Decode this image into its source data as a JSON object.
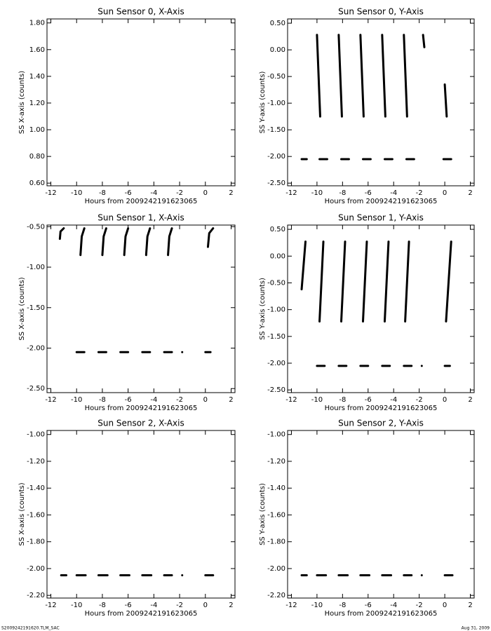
{
  "chart_data": [
    {
      "type": "line",
      "title": "Sun Sensor 0, X-Axis",
      "xlabel": "Hours from 2009242191623065",
      "ylabel": "SS X-axis (counts)",
      "xlim": [
        -12.3,
        2.3
      ],
      "xticks": [
        -12,
        -10,
        -8,
        -6,
        -4,
        -2,
        0,
        2
      ],
      "ylim": [
        0.58,
        1.83
      ],
      "yticks": [
        {
          "value": 0.6,
          "label": "0.60"
        },
        {
          "value": 0.8,
          "label": "0.80"
        },
        {
          "value": 1.0,
          "label": "1.00"
        },
        {
          "value": 1.2,
          "label": "1.20"
        },
        {
          "value": 1.4,
          "label": "1.40"
        },
        {
          "value": 1.6,
          "label": "1.60"
        },
        {
          "value": 1.8,
          "label": "1.80"
        }
      ],
      "series": []
    },
    {
      "type": "line",
      "title": "Sun Sensor 0, Y-Axis",
      "xlabel": "Hours from 2009242191623065",
      "ylabel": "SS Y-axis (counts)",
      "xlim": [
        -12.3,
        2.3
      ],
      "xticks": [
        -12,
        -10,
        -8,
        -6,
        -4,
        -2,
        0,
        2
      ],
      "ylim": [
        -2.55,
        0.58
      ],
      "yticks": [
        {
          "value": -2.5,
          "label": "-2.50"
        },
        {
          "value": -2.0,
          "label": "-2.00"
        },
        {
          "value": -1.5,
          "label": "-1.50"
        },
        {
          "value": -1.0,
          "label": "-1.00"
        },
        {
          "value": -0.5,
          "label": "-0.50"
        },
        {
          "value": 0,
          "label": "0.00"
        },
        {
          "value": 0.5,
          "label": "0.50"
        }
      ],
      "series": [
        {
          "color": "#000000",
          "x": [
            -10.0,
            -9.75,
            null,
            -8.3,
            -8.05,
            null,
            -6.6,
            -6.35,
            null,
            -4.9,
            -4.65,
            null,
            -3.2,
            -2.95,
            null,
            -1.7,
            -1.6,
            null,
            0.0,
            0.15,
            null,
            -11.2,
            -10.8,
            null,
            -9.8,
            -9.2,
            null,
            -8.1,
            -7.5,
            null,
            -6.4,
            -5.8,
            null,
            -4.7,
            -4.1,
            null,
            -3.0,
            -2.4,
            null,
            -0.1,
            0.5
          ],
          "values": [
            0.28,
            -1.25,
            null,
            0.28,
            -1.25,
            null,
            0.28,
            -1.25,
            null,
            0.28,
            -1.25,
            null,
            0.28,
            -1.25,
            null,
            0.28,
            0.05,
            null,
            -0.65,
            -1.25,
            null,
            -2.05,
            -2.05,
            null,
            -2.05,
            -2.05,
            null,
            -2.05,
            -2.05,
            null,
            -2.05,
            -2.05,
            null,
            -2.05,
            -2.05,
            null,
            -2.05,
            -2.05,
            null,
            -2.05,
            -2.05
          ]
        }
      ]
    },
    {
      "type": "line",
      "title": "Sun Sensor 1, X-Axis",
      "xlabel": "Hours from 2009242191623065",
      "ylabel": "SS X-axis (counts)",
      "xlim": [
        -12.3,
        2.3
      ],
      "xticks": [
        -12,
        -10,
        -8,
        -6,
        -4,
        -2,
        0,
        2
      ],
      "ylim": [
        -2.55,
        -0.48
      ],
      "yticks": [
        {
          "value": -2.5,
          "label": "-2.50"
        },
        {
          "value": -2.0,
          "label": "-2.00"
        },
        {
          "value": -1.5,
          "label": "-1.50"
        },
        {
          "value": -1.0,
          "label": "-1.00"
        },
        {
          "value": -0.5,
          "label": "-0.50"
        }
      ],
      "series": [
        {
          "color": "#000000",
          "x": [
            -11.3,
            -11.25,
            -11.0,
            null,
            -9.7,
            -9.6,
            -9.4,
            null,
            -8.0,
            -7.9,
            -7.7,
            null,
            -6.3,
            -6.2,
            -6.0,
            null,
            -4.6,
            -4.5,
            -4.3,
            null,
            -2.9,
            -2.8,
            -2.6,
            null,
            0.2,
            0.3,
            0.6,
            null,
            -10.0,
            -9.4,
            null,
            -8.3,
            -7.7,
            null,
            -6.6,
            -6.0,
            null,
            -4.9,
            -4.3,
            null,
            -3.2,
            -2.6,
            null,
            -1.8,
            null,
            0.0,
            0.4
          ],
          "values": [
            -0.65,
            -0.56,
            -0.52,
            null,
            -0.85,
            -0.62,
            -0.52,
            null,
            -0.85,
            -0.62,
            -0.52,
            null,
            -0.85,
            -0.62,
            -0.52,
            null,
            -0.85,
            -0.62,
            -0.52,
            null,
            -0.85,
            -0.62,
            -0.52,
            null,
            -0.75,
            -0.58,
            -0.52,
            null,
            -2.05,
            -2.05,
            null,
            -2.05,
            -2.05,
            null,
            -2.05,
            -2.05,
            null,
            -2.05,
            -2.05,
            null,
            -2.05,
            -2.05,
            null,
            -2.05,
            null,
            -2.05,
            -2.05
          ]
        }
      ]
    },
    {
      "type": "line",
      "title": "Sun Sensor 1, Y-Axis",
      "xlabel": "Hours from 2009242191623065",
      "ylabel": "SS Y-axis (counts)",
      "xlim": [
        -12.3,
        2.3
      ],
      "xticks": [
        -12,
        -10,
        -8,
        -6,
        -4,
        -2,
        0,
        2
      ],
      "ylim": [
        -2.55,
        0.58
      ],
      "yticks": [
        {
          "value": -2.5,
          "label": "-2.50"
        },
        {
          "value": -2.0,
          "label": "-2.00"
        },
        {
          "value": -1.5,
          "label": "-1.50"
        },
        {
          "value": -1.0,
          "label": "-1.00"
        },
        {
          "value": -0.5,
          "label": "-0.50"
        },
        {
          "value": 0,
          "label": "0.00"
        },
        {
          "value": 0.5,
          "label": "0.50"
        }
      ],
      "series": [
        {
          "color": "#000000",
          "x": [
            -11.2,
            -10.9,
            null,
            -9.8,
            -9.5,
            null,
            -8.1,
            -7.8,
            null,
            -6.4,
            -6.1,
            null,
            -4.7,
            -4.4,
            null,
            -3.1,
            -2.8,
            null,
            0.1,
            0.5,
            null,
            -10.0,
            -9.4,
            null,
            -8.3,
            -7.7,
            null,
            -6.6,
            -6.0,
            null,
            -4.9,
            -4.3,
            null,
            -3.2,
            -2.6,
            null,
            -1.8,
            null,
            0.0,
            0.4
          ],
          "values": [
            -0.62,
            0.27,
            null,
            -1.22,
            0.27,
            null,
            -1.22,
            0.27,
            null,
            -1.22,
            0.27,
            null,
            -1.22,
            0.27,
            null,
            -1.22,
            0.27,
            null,
            -1.22,
            0.27,
            null,
            -2.05,
            -2.05,
            null,
            -2.05,
            -2.05,
            null,
            -2.05,
            -2.05,
            null,
            -2.05,
            -2.05,
            null,
            -2.05,
            -2.05,
            null,
            -2.05,
            null,
            -2.05,
            -2.05
          ]
        }
      ]
    },
    {
      "type": "line",
      "title": "Sun Sensor 2, X-Axis",
      "xlabel": "Hours from 2009242191623065",
      "ylabel": "SS X-axis (counts)",
      "xlim": [
        -12.3,
        2.3
      ],
      "xticks": [
        -12,
        -10,
        -8,
        -6,
        -4,
        -2,
        0,
        2
      ],
      "ylim": [
        -2.22,
        -0.97
      ],
      "yticks": [
        {
          "value": -2.2,
          "label": "-2.20"
        },
        {
          "value": -2.0,
          "label": "-2.00"
        },
        {
          "value": -1.8,
          "label": "-1.80"
        },
        {
          "value": -1.6,
          "label": "-1.60"
        },
        {
          "value": -1.4,
          "label": "-1.40"
        },
        {
          "value": -1.2,
          "label": "-1.20"
        },
        {
          "value": -1.0,
          "label": "-1.00"
        }
      ],
      "series": [
        {
          "color": "#000000",
          "x": [
            -11.2,
            -10.8,
            null,
            -10.0,
            -9.3,
            null,
            -8.3,
            -7.6,
            null,
            -6.6,
            -5.9,
            null,
            -4.9,
            -4.2,
            null,
            -3.2,
            -2.6,
            null,
            -1.8,
            null,
            0.0,
            0.6
          ],
          "values": [
            -2.05,
            -2.05,
            null,
            -2.05,
            -2.05,
            null,
            -2.05,
            -2.05,
            null,
            -2.05,
            -2.05,
            null,
            -2.05,
            -2.05,
            null,
            -2.05,
            -2.05,
            null,
            -2.05,
            null,
            -2.05,
            -2.05
          ]
        }
      ]
    },
    {
      "type": "line",
      "title": "Sun Sensor 2, Y-Axis",
      "xlabel": "Hours from 2009242191623065",
      "ylabel": "SS Y-axis (counts)",
      "xlim": [
        -12.3,
        2.3
      ],
      "xticks": [
        -12,
        -10,
        -8,
        -6,
        -4,
        -2,
        0,
        2
      ],
      "ylim": [
        -2.22,
        -0.97
      ],
      "yticks": [
        {
          "value": -2.2,
          "label": "-2.20"
        },
        {
          "value": -2.0,
          "label": "-2.00"
        },
        {
          "value": -1.8,
          "label": "-1.80"
        },
        {
          "value": -1.6,
          "label": "-1.60"
        },
        {
          "value": -1.4,
          "label": "-1.40"
        },
        {
          "value": -1.2,
          "label": "-1.20"
        },
        {
          "value": -1.0,
          "label": "-1.00"
        }
      ],
      "series": [
        {
          "color": "#000000",
          "x": [
            -11.2,
            -10.8,
            null,
            -10.0,
            -9.3,
            null,
            -8.3,
            -7.6,
            null,
            -6.6,
            -5.9,
            null,
            -4.9,
            -4.2,
            null,
            -3.2,
            -2.6,
            null,
            -1.8,
            null,
            0.0,
            0.6
          ],
          "values": [
            -2.05,
            -2.05,
            null,
            -2.05,
            -2.05,
            null,
            -2.05,
            -2.05,
            null,
            -2.05,
            -2.05,
            null,
            -2.05,
            -2.05,
            null,
            -2.05,
            -2.05,
            null,
            -2.05,
            null,
            -2.05,
            -2.05
          ]
        }
      ]
    }
  ],
  "footer_left": "S2009242191620.TLM_SAC",
  "footer_right": "Aug 31, 2009"
}
